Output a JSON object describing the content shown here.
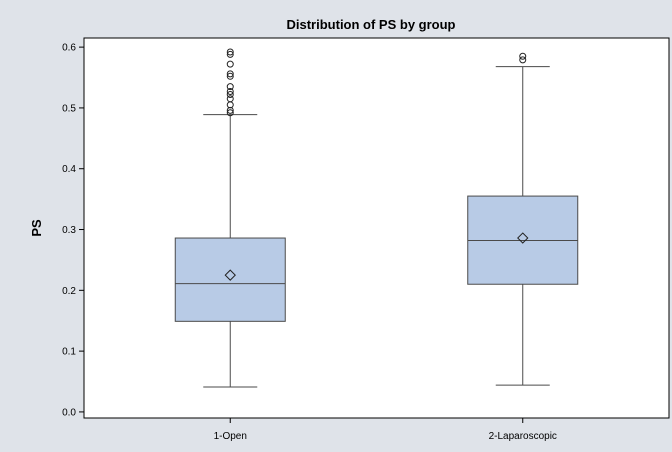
{
  "chart_data": {
    "type": "box",
    "title": "Distribution of PS by group",
    "xlabel": "",
    "ylabel": "PS",
    "ylim": [
      -0.01,
      0.615
    ],
    "yticks": [
      0.0,
      0.1,
      0.2,
      0.3,
      0.4,
      0.5,
      0.6
    ],
    "ytick_labels": [
      "0.0",
      "0.1",
      "0.2",
      "0.3",
      "0.4",
      "0.5",
      "0.6"
    ],
    "categories": [
      "1-Open",
      "2-Laparoscopic"
    ],
    "boxes": [
      {
        "category": "1-Open",
        "whisker_low": 0.041,
        "q1": 0.149,
        "median": 0.211,
        "q3": 0.286,
        "whisker_high": 0.489,
        "mean": 0.225,
        "outliers": [
          0.492,
          0.496,
          0.505,
          0.515,
          0.522,
          0.527,
          0.535,
          0.552,
          0.556,
          0.572,
          0.588,
          0.592
        ]
      },
      {
        "category": "2-Laparoscopic",
        "whisker_low": 0.044,
        "q1": 0.21,
        "median": 0.282,
        "q3": 0.355,
        "whisker_high": 0.568,
        "mean": 0.286,
        "outliers": [
          0.579,
          0.585
        ]
      }
    ],
    "colors": {
      "box_fill": "#b8cbe6",
      "box_stroke": "#4a4a4a",
      "outer_background": "#dfe3e9",
      "plot_background": "#ffffff"
    },
    "grid": false,
    "legend": "none"
  }
}
